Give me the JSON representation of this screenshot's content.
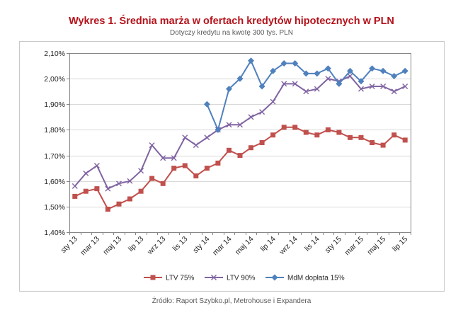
{
  "chart_data": {
    "type": "line",
    "title": "Wykres 1. Średnia marża w ofertach kredytów hipotecznych w PLN",
    "subtitle": "Dotyczy kredytu na kwotę 300 tys. PLN",
    "title_color": "#B5121B",
    "categories": [
      "sty 13",
      "",
      "mar 13",
      "",
      "maj 13",
      "",
      "lip 13",
      "",
      "wrz 13",
      "",
      "lis 13",
      "",
      "sty 14",
      "",
      "mar 14",
      "",
      "maj 14",
      "",
      "lip 14",
      "",
      "wrz 14",
      "",
      "lis 14",
      "",
      "sty 15",
      "",
      "mar 15",
      "",
      "maj 15",
      "",
      "lip 15"
    ],
    "ylim": [
      1.4,
      2.1
    ],
    "y_ticks": [
      1.4,
      1.5,
      1.6,
      1.7,
      1.8,
      1.9,
      2.0,
      2.1
    ],
    "y_tick_labels": [
      "1,40%",
      "1,50%",
      "1,60%",
      "1,70%",
      "1,80%",
      "1,90%",
      "2,00%",
      "2,10%"
    ],
    "grid": true,
    "legend": "bottom",
    "series": [
      {
        "name": "LTV 75%",
        "color": "#C0504D",
        "marker": "square",
        "values": [
          1.54,
          1.56,
          1.57,
          1.49,
          1.51,
          1.53,
          1.56,
          1.61,
          1.59,
          1.65,
          1.66,
          1.62,
          1.65,
          1.67,
          1.72,
          1.7,
          1.73,
          1.75,
          1.78,
          1.81,
          1.81,
          1.79,
          1.78,
          1.8,
          1.79,
          1.77,
          1.77,
          1.75,
          1.74,
          1.78,
          1.76
        ]
      },
      {
        "name": "LTV 90%",
        "color": "#8064A2",
        "marker": "x",
        "values": [
          1.58,
          1.63,
          1.66,
          1.57,
          1.59,
          1.6,
          1.64,
          1.74,
          1.69,
          1.69,
          1.77,
          1.74,
          1.77,
          1.8,
          1.82,
          1.82,
          1.85,
          1.87,
          1.91,
          1.98,
          1.98,
          1.95,
          1.96,
          2.0,
          1.99,
          2.01,
          1.96,
          1.97,
          1.97,
          1.95,
          1.97
        ]
      },
      {
        "name": "MdM dopłata 15%",
        "color": "#4F81BD",
        "marker": "diamond",
        "values": [
          null,
          null,
          null,
          null,
          null,
          null,
          null,
          null,
          null,
          null,
          null,
          null,
          1.9,
          1.8,
          1.96,
          2.0,
          2.07,
          1.97,
          2.03,
          2.06,
          2.06,
          2.02,
          2.02,
          2.04,
          1.98,
          2.03,
          1.99,
          2.04,
          2.03,
          2.01,
          2.03
        ]
      }
    ]
  },
  "footer": {
    "source": "Źródło: Raport Szybko.pl, Metrohouse i Expandera"
  }
}
